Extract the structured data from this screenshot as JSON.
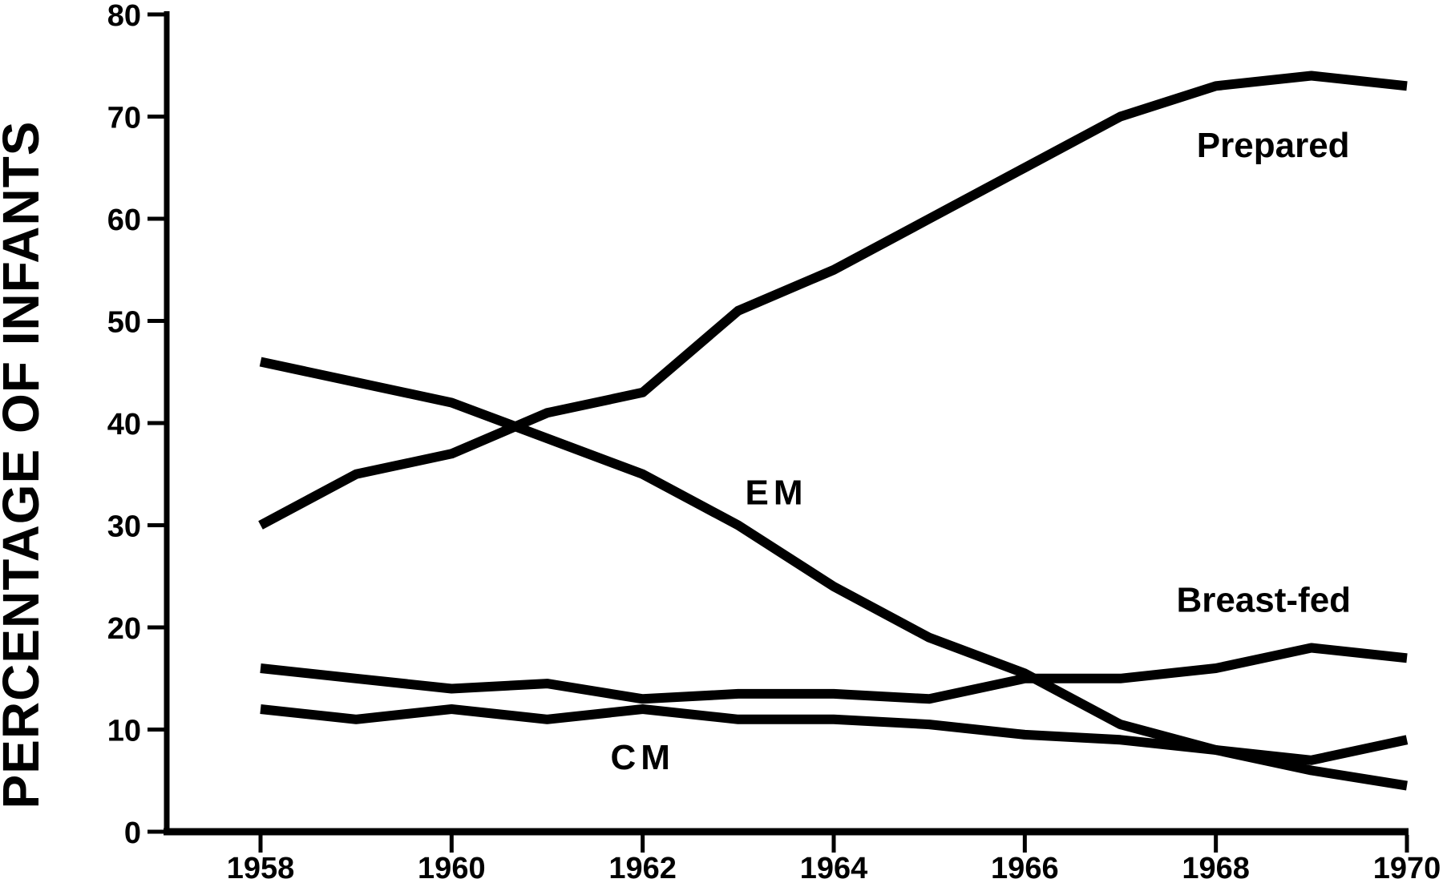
{
  "figure": {
    "y_axis_title": "PERCENTAGE OF INFANTS",
    "background_color": "#ffffff",
    "ink_color": "#000000"
  },
  "chart_data": {
    "type": "line",
    "title": "",
    "xlabel": "",
    "ylabel": "PERCENTAGE OF INFANTS",
    "grid": false,
    "legend_position": "inline-labels",
    "xlim": [
      1957.0,
      1970.2
    ],
    "ylim": [
      0,
      80
    ],
    "y_ticks": [
      0,
      10,
      20,
      30,
      40,
      50,
      60,
      70,
      80
    ],
    "y_tick_labels": [
      "0",
      "10",
      "20",
      "30",
      "40",
      "50",
      "60",
      "70",
      "80"
    ],
    "x_tick_years": [
      1958,
      1960,
      1962,
      1964,
      1966,
      1968,
      1970
    ],
    "x_tick_labels": [
      "1958",
      "1960",
      "1962",
      "1964",
      "1966",
      "1968",
      "1970"
    ],
    "x": [
      1958,
      1959,
      1960,
      1961,
      1962,
      1963,
      1964,
      1965,
      1966,
      1967,
      1968,
      1969,
      1970
    ],
    "series": [
      {
        "name": "Prepared",
        "values": [
          30,
          35,
          37,
          41,
          43,
          51,
          55,
          60,
          65,
          70,
          73,
          74,
          73
        ],
        "label_year": 1968.6,
        "label_value": 67.2
      },
      {
        "name": "EM",
        "values": [
          46,
          44,
          42,
          38.5,
          35,
          30,
          24,
          19,
          15.5,
          10.5,
          8,
          6,
          4.5
        ],
        "label_year": 1963.4,
        "label_value": 33.2
      },
      {
        "name": "Breast-fed",
        "values": [
          16,
          15,
          14,
          14.5,
          13,
          13.5,
          13.5,
          13,
          15,
          15,
          16,
          18,
          17
        ],
        "label_year": 1968.5,
        "label_value": 22.7
      },
      {
        "name": "CM",
        "values": [
          12,
          11,
          12,
          11,
          12,
          11,
          11,
          10.5,
          9.5,
          9,
          8,
          7,
          9
        ],
        "label_year": 1962.0,
        "label_value": 7.3
      }
    ]
  }
}
